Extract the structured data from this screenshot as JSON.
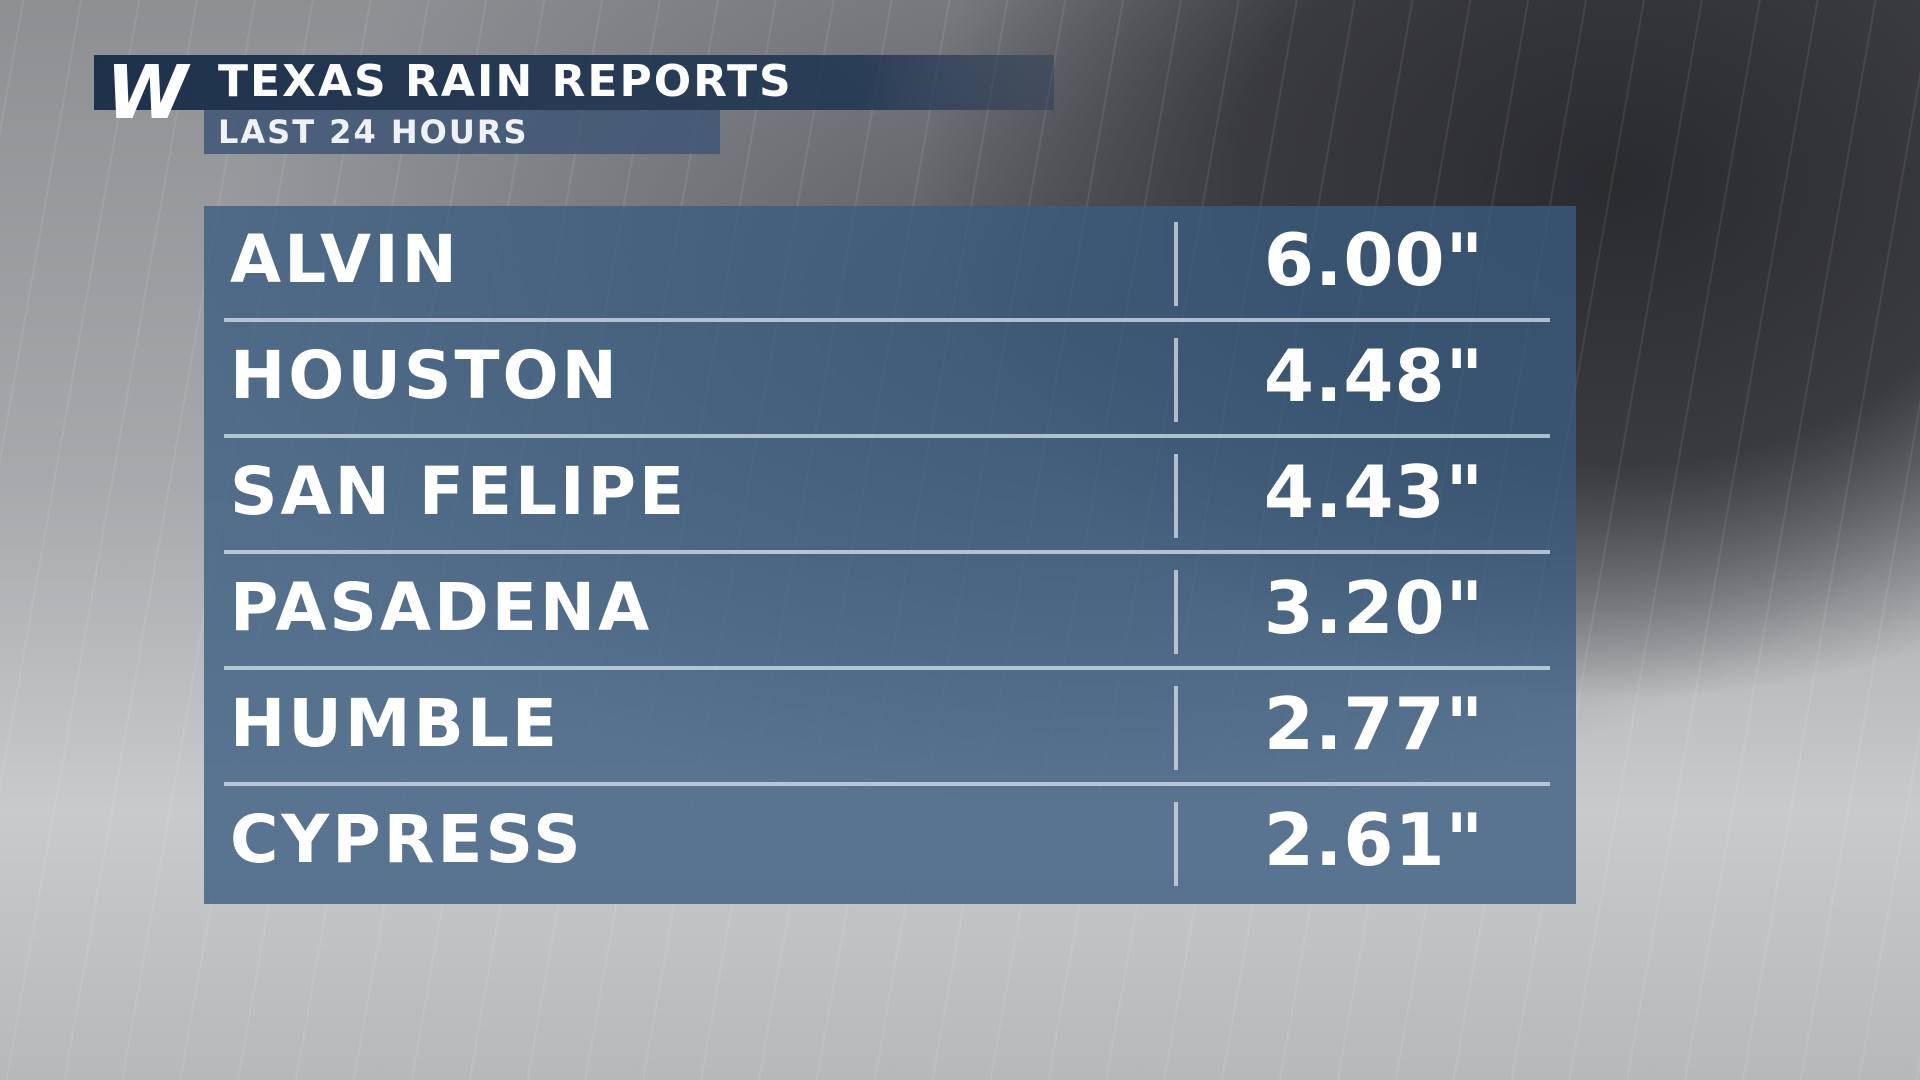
{
  "header": {
    "logo": "W",
    "title": "TEXAS RAIN REPORTS",
    "subtitle": "LAST 24 HOURS"
  },
  "table": {
    "rows": [
      [
        "ALVIN",
        "6.00\""
      ],
      [
        "HOUSTON",
        "4.48\""
      ],
      [
        "SAN FELIPE",
        "4.43\""
      ],
      [
        "PASADENA",
        "3.20\""
      ],
      [
        "HUMBLE",
        "2.77\""
      ],
      [
        "CYPRESS",
        "2.61\""
      ]
    ]
  }
}
